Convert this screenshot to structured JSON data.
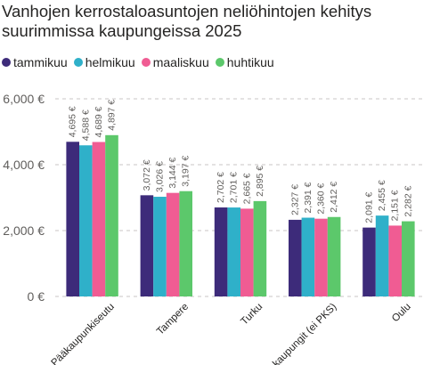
{
  "title_line1": "Vanhojen kerrostaloasuntojen neliöhintojen kehitys",
  "title_line2": "suurimmissa kaupungeissa 2025",
  "chart_data": {
    "type": "bar",
    "categories": [
      "Pääkaupunkiseutu",
      "Tampere",
      "Turku",
      "Isot kaupungit (ei PKS)",
      "Oulu"
    ],
    "series": [
      {
        "name": "tammikuu",
        "color": "#3d2b7a",
        "values": [
          4695,
          3072,
          2702,
          2327,
          2091
        ],
        "labels": [
          "4,695 €",
          "3,072 €",
          "2,702 €",
          "2,327 €",
          "2,091 €"
        ]
      },
      {
        "name": "helmikuu",
        "color": "#2fb0c9",
        "values": [
          4588,
          3026,
          2701,
          2391,
          2455
        ],
        "labels": [
          "4,588 €",
          "3,026 €",
          "2,701 €",
          "2,391 €",
          "2,455 €"
        ]
      },
      {
        "name": "maaliskuu",
        "color": "#f05c93",
        "values": [
          4689,
          3144,
          2665,
          2360,
          2151
        ],
        "labels": [
          "4,689 €",
          "3,144 €",
          "2,665 €",
          "2,360 €",
          "2,151 €"
        ]
      },
      {
        "name": "huhtikuu",
        "color": "#5cc86b",
        "values": [
          4897,
          3197,
          2895,
          2412,
          2282
        ],
        "labels": [
          "4,897 €",
          "3,197 €",
          "2,895 €",
          "2,412 €",
          "2,282 €"
        ]
      }
    ],
    "yticks": [
      0,
      2000,
      4000,
      6000
    ],
    "ytick_labels": [
      "0 €",
      "2,000 €",
      "4,000 €",
      "6,000 €"
    ],
    "ylim": [
      0,
      6000
    ],
    "grid": true,
    "legend_position": "top-left",
    "xlabel": "",
    "ylabel": ""
  }
}
